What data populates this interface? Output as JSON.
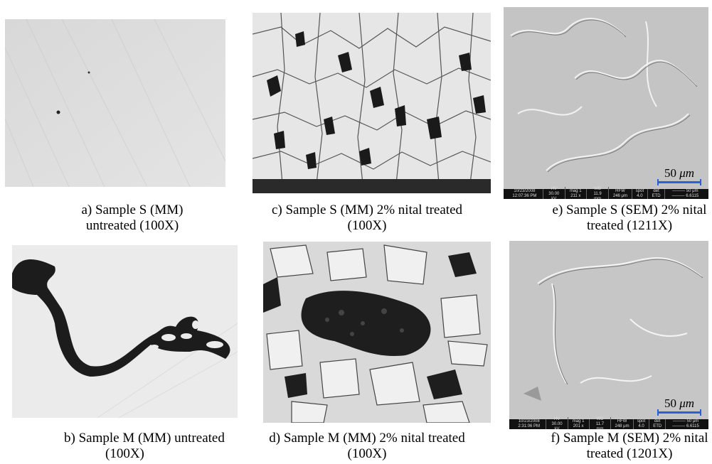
{
  "panels": [
    {
      "id": "a",
      "caption_line1": "a) Sample S (MM)",
      "caption_line2": "untreated (100X)"
    },
    {
      "id": "c",
      "caption_line1": "c) Sample S (MM) 2% nital treated",
      "caption_line2": "(100X)"
    },
    {
      "id": "e",
      "caption_line1": "e) Sample S (SEM) 2% nital",
      "caption_line2": "treated (1211X)",
      "scale_num": "50",
      "scale_unit": "μm",
      "sem_info": [
        "10/23/2008 12:07:36 PM",
        "HV 30.00 kV",
        "mag 1 211 x",
        "WD 11.9 mm",
        "HFW 246 μm",
        "spot 4.0",
        "det ETD",
        "——— 50 μm ——— 6.6115"
      ]
    },
    {
      "id": "b",
      "caption_line1": "b) Sample M (MM) untreated",
      "caption_line2": "(100X)"
    },
    {
      "id": "d",
      "caption_line1": "d) Sample M (MM) 2% nital treated",
      "caption_line2": "(100X)"
    },
    {
      "id": "f",
      "caption_line1": "f) Sample M (SEM) 2% nital",
      "caption_line2": "treated (1201X)",
      "scale_num": "50",
      "scale_unit": "μm",
      "sem_info": [
        "10/23/2008 2:31:06 PM",
        "HV 30.00 kV",
        "mag 1 201 x",
        "WD 11.7 mm",
        "HFW 248 μm",
        "spot 4.0",
        "det ETD",
        "——— 50 μm ——— 6.6115"
      ]
    }
  ]
}
